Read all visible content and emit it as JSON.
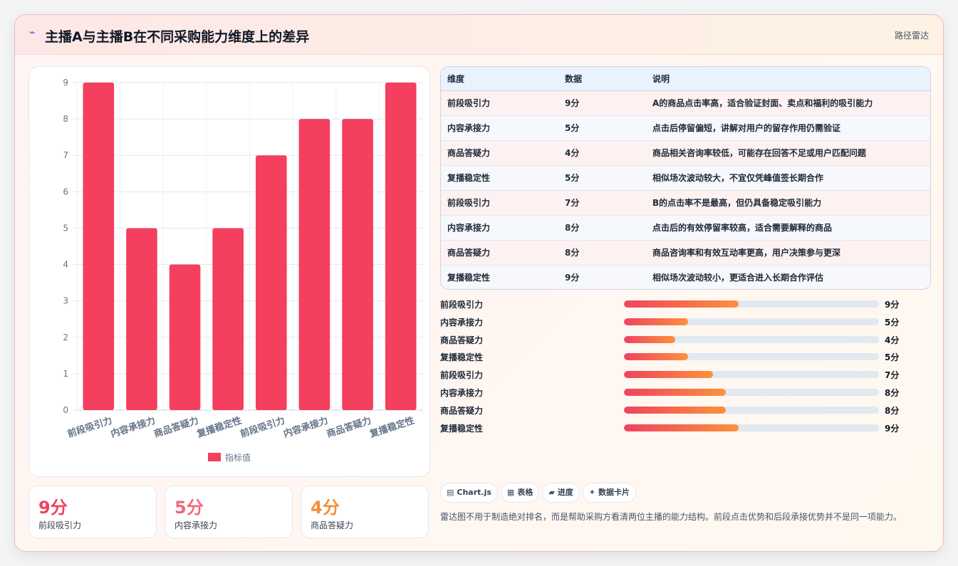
{
  "header": {
    "icon": "pulse-icon",
    "title": "主播A与主播B在不同采购能力维度上的差异",
    "tag": "路径雷达"
  },
  "chart_data": {
    "type": "bar",
    "categories": [
      "前段吸引力",
      "内容承接力",
      "商品答疑力",
      "复播稳定性",
      "前段吸引力",
      "内容承接力",
      "商品答疑力",
      "复播稳定性"
    ],
    "series": [
      {
        "name": "指标值",
        "values": [
          9,
          5,
          4,
          5,
          7,
          8,
          8,
          9
        ],
        "color": "#f43f5e"
      }
    ],
    "ylim": [
      0,
      9
    ],
    "yticks": [
      0,
      1,
      2,
      3,
      4,
      5,
      6,
      7,
      8,
      9
    ],
    "grid": true,
    "legend": "bottom"
  },
  "stats": [
    {
      "value": "9分",
      "label": "前段吸引力",
      "color": "#ef4360"
    },
    {
      "value": "5分",
      "label": "内容承接力",
      "color": "#f06a7c"
    },
    {
      "value": "4分",
      "label": "商品答疑力",
      "color": "#f2903a"
    }
  ],
  "table": {
    "headers": [
      "维度",
      "数据",
      "说明"
    ],
    "rows": [
      [
        "前段吸引力",
        "9分",
        "A的商品点击率高，适合验证封面、卖点和福利的吸引能力"
      ],
      [
        "内容承接力",
        "5分",
        "点击后停留偏短，讲解对用户的留存作用仍需验证"
      ],
      [
        "商品答疑力",
        "4分",
        "商品相关咨询率较低，可能存在回答不足或用户匹配问题"
      ],
      [
        "复播稳定性",
        "5分",
        "相似场次波动较大，不宜仅凭峰值签长期合作"
      ],
      [
        "前段吸引力",
        "7分",
        "B的点击率不是最高，但仍具备稳定吸引能力"
      ],
      [
        "内容承接力",
        "8分",
        "点击后的有效停留率较高，适合需要解释的商品"
      ],
      [
        "商品答疑力",
        "8分",
        "商品咨询率和有效互动率更高，用户决策参与更深"
      ],
      [
        "复播稳定性",
        "9分",
        "相似场次波动较小，更适合进入长期合作评估"
      ]
    ]
  },
  "progress": [
    {
      "label": "前段吸引力",
      "value": "9分",
      "fraction": 0.45
    },
    {
      "label": "内容承接力",
      "value": "5分",
      "fraction": 0.25
    },
    {
      "label": "商品答疑力",
      "value": "4分",
      "fraction": 0.2
    },
    {
      "label": "复播稳定性",
      "value": "5分",
      "fraction": 0.25
    },
    {
      "label": "前段吸引力",
      "value": "7分",
      "fraction": 0.35
    },
    {
      "label": "内容承接力",
      "value": "8分",
      "fraction": 0.4
    },
    {
      "label": "商品答疑力",
      "value": "8分",
      "fraction": 0.4
    },
    {
      "label": "复播稳定性",
      "value": "9分",
      "fraction": 0.45
    }
  ],
  "chips": [
    {
      "icon": "▤",
      "icon_name": "chart-icon",
      "label": "Chart.js"
    },
    {
      "icon": "▦",
      "icon_name": "table-icon",
      "label": "表格"
    },
    {
      "icon": "▰",
      "icon_name": "progress-icon",
      "label": "进度"
    },
    {
      "icon": "✦",
      "icon_name": "sparkle-icon",
      "label": "数据卡片"
    }
  ],
  "note": "雷达图不用于制造绝对排名，而是帮助采购方看清两位主播的能力结构。前段点击优势和后段承接优势并不是同一项能力。"
}
